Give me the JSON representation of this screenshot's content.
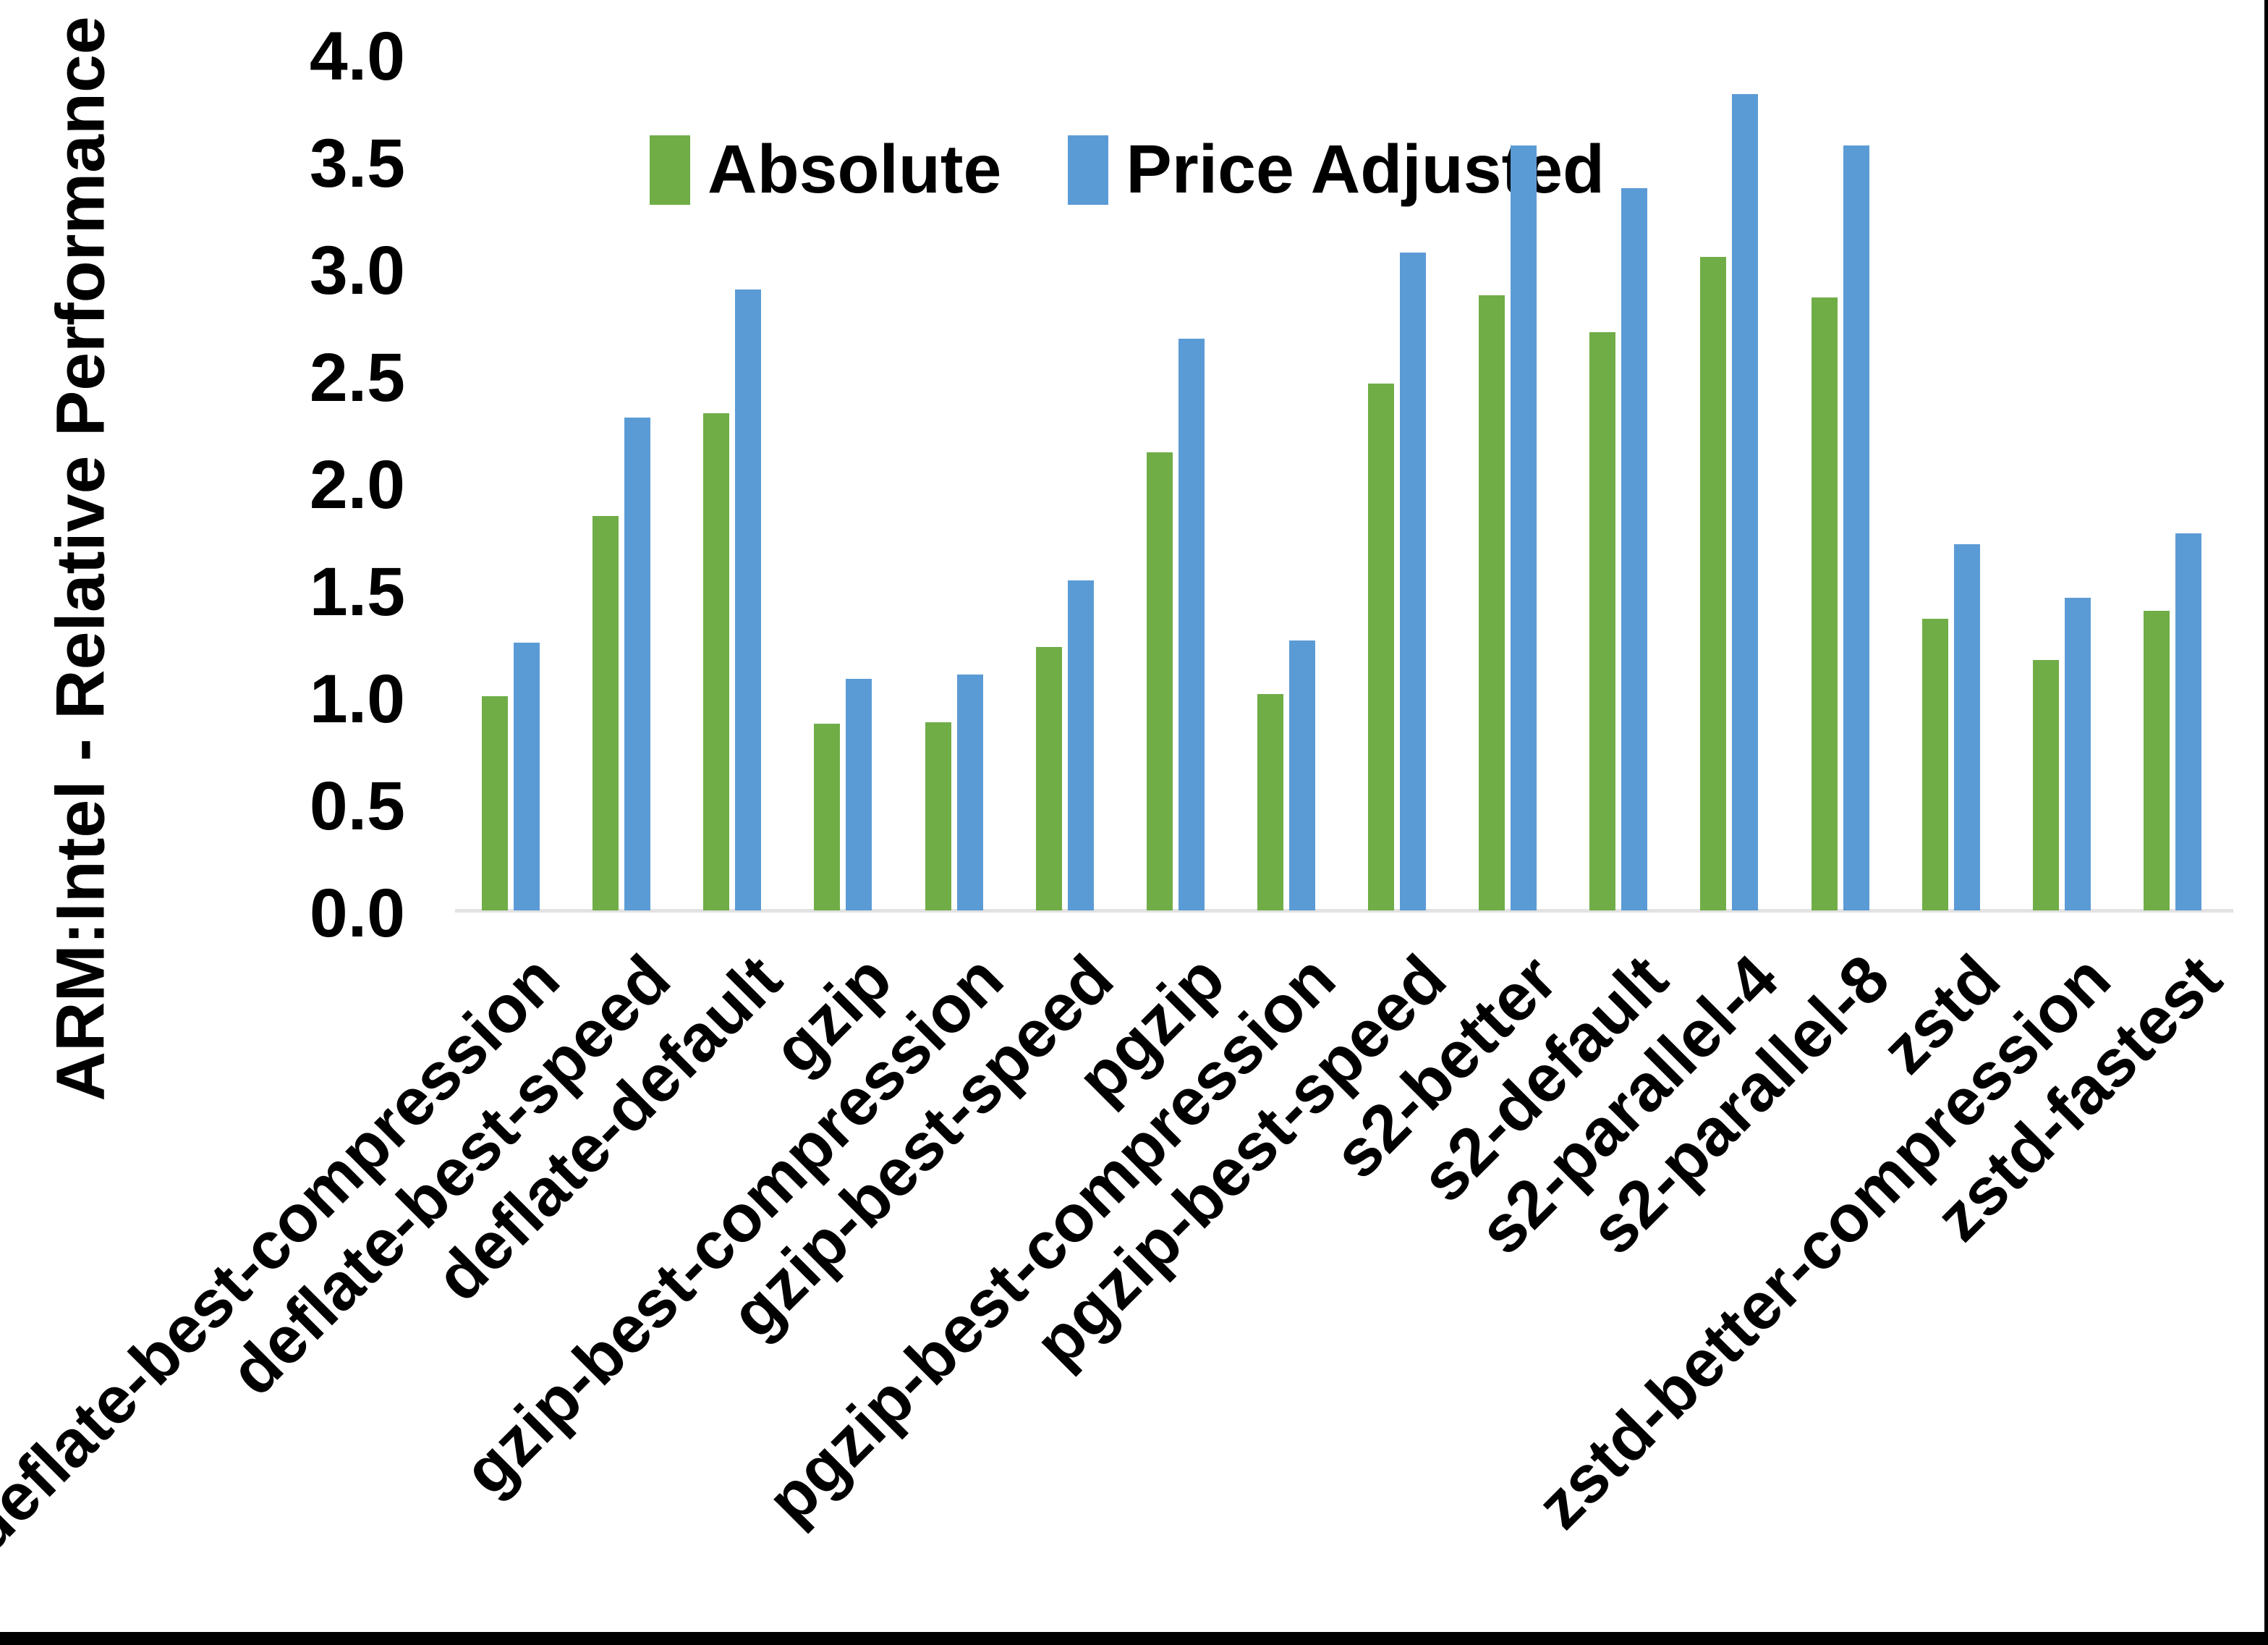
{
  "chart_data": {
    "type": "bar",
    "title": "",
    "xlabel": "",
    "ylabel": "ARM:Intel - Relative Performance",
    "ylim": [
      0.0,
      4.0
    ],
    "ytick_step": 0.5,
    "yticks": [
      0.0,
      0.5,
      1.0,
      1.5,
      2.0,
      2.5,
      3.0,
      3.5,
      4.0
    ],
    "grid": "off",
    "legend_position": "top",
    "axis_line_color": "#e2e2e2",
    "categories": [
      "deflate-best-compression",
      "deflate-best-speed",
      "deflate-default",
      "gzip",
      "gzip-best-compression",
      "gzip-best-speed",
      "pgzip",
      "pgzip-best-compression",
      "pgzip-best-speed",
      "s2-better",
      "s2-default",
      "s2-parallel-4",
      "s2-parallel-8",
      "zstd",
      "zstd-better-compression",
      "zstd-fastest"
    ],
    "series": [
      {
        "name": "Absolute",
        "color": "#70AD47",
        "values": [
          1.0,
          1.84,
          2.32,
          0.87,
          0.88,
          1.23,
          2.14,
          1.01,
          2.46,
          2.87,
          2.7,
          3.05,
          2.86,
          1.36,
          1.17,
          1.4
        ]
      },
      {
        "name": "Price Adjusted",
        "color": "#5B9BD5",
        "values": [
          1.25,
          2.3,
          2.9,
          1.08,
          1.1,
          1.54,
          2.67,
          1.26,
          3.07,
          3.57,
          3.37,
          3.81,
          3.57,
          1.71,
          1.46,
          1.76
        ]
      }
    ]
  }
}
